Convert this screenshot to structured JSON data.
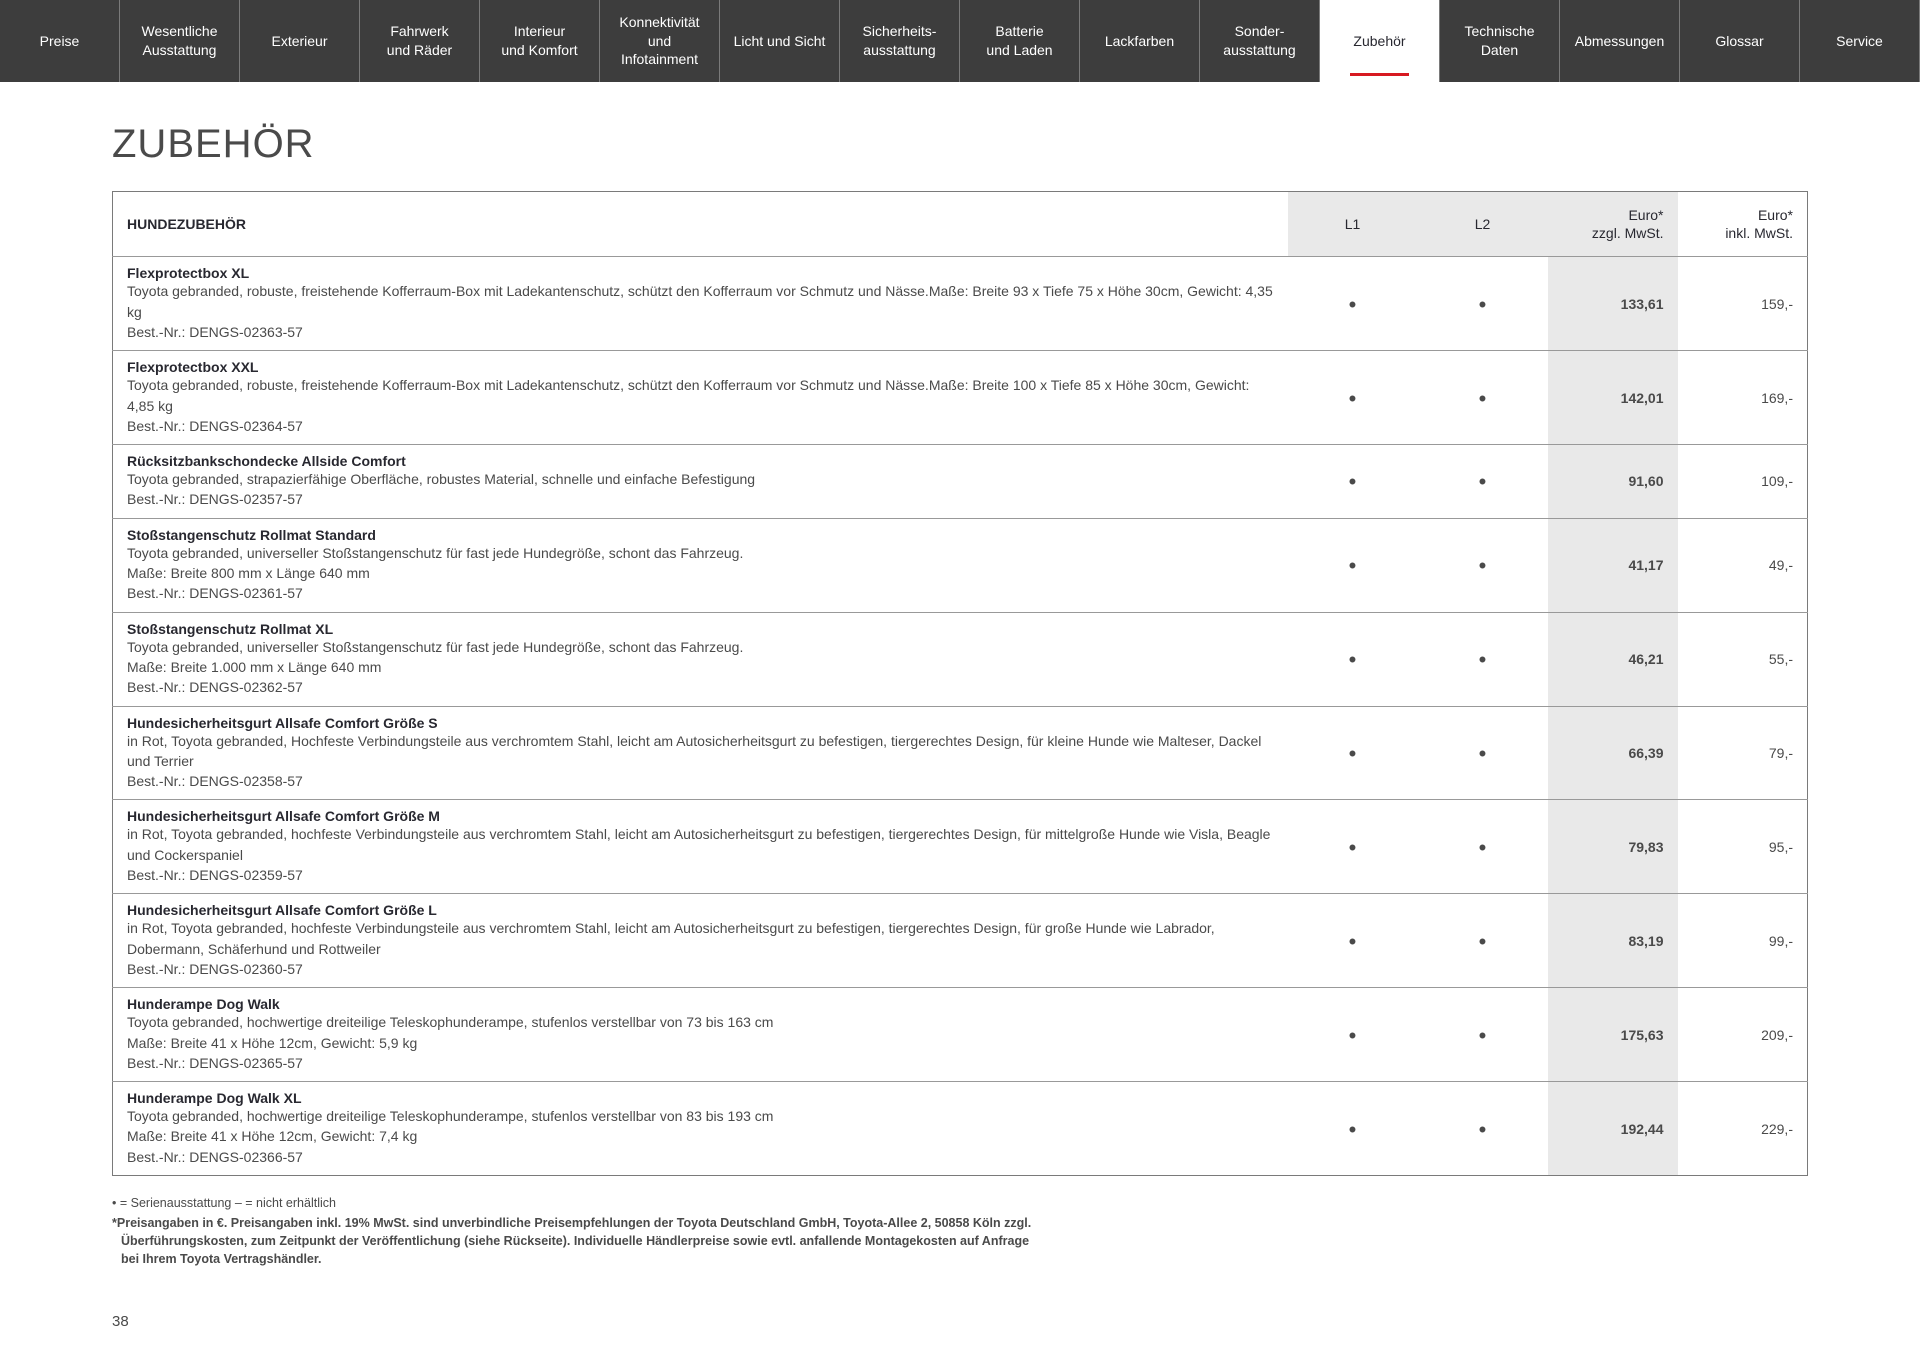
{
  "nav": {
    "items": [
      {
        "label": "Preise"
      },
      {
        "label": "Wesentliche Ausstattung"
      },
      {
        "label": "Exterieur"
      },
      {
        "label": "Fahrwerk und Räder"
      },
      {
        "label": "Interieur und Komfort"
      },
      {
        "label": "Konnektivität und Infotainment"
      },
      {
        "label": "Licht und Sicht"
      },
      {
        "label": "Sicherheits-ausstattung"
      },
      {
        "label": "Batterie und Laden"
      },
      {
        "label": "Lackfarben"
      },
      {
        "label": "Sonder-ausstattung"
      },
      {
        "label": "Zubehör",
        "active": true
      },
      {
        "label": "Technische Daten"
      },
      {
        "label": "Abmessungen"
      },
      {
        "label": "Glossar"
      },
      {
        "label": "Service"
      }
    ]
  },
  "pageTitle": "ZUBEHÖR",
  "table": {
    "header": {
      "category": "HUNDEZUBEHÖR",
      "l1": "L1",
      "l2": "L2",
      "net_line1": "Euro*",
      "net_line2": "zzgl. MwSt.",
      "gross_line1": "Euro*",
      "gross_line2": "inkl. MwSt."
    },
    "rows": [
      {
        "name": "Flexprotectbox XL",
        "desc": "Toyota gebranded, robuste, freistehende Kofferraum-Box mit Ladekantenschutz, schützt den Kofferraum vor Schmutz und Nässe.Maße: Breite 93 x Tiefe 75 x Höhe 30cm, Gewicht: 4,35 kg",
        "best": "Best.-Nr.: DENGS-02363-57",
        "l1": "•",
        "l2": "•",
        "net": "133,61",
        "gross": "159,-"
      },
      {
        "name": "Flexprotectbox XXL",
        "desc": "Toyota gebranded, robuste, freistehende Kofferraum-Box mit Ladekantenschutz, schützt den Kofferraum vor Schmutz und Nässe.Maße: Breite 100 x Tiefe 85 x Höhe 30cm, Gewicht: 4,85 kg",
        "best": "Best.-Nr.: DENGS-02364-57",
        "l1": "•",
        "l2": "•",
        "net": "142,01",
        "gross": "169,-"
      },
      {
        "name": "Rücksitzbankschondecke Allside Comfort",
        "desc": "Toyota gebranded, strapazierfähige Oberfläche, robustes Material, schnelle und einfache Befestigung",
        "best": "Best.-Nr.: DENGS-02357-57",
        "l1": "•",
        "l2": "•",
        "net": "91,60",
        "gross": "109,-"
      },
      {
        "name": "Stoßstangenschutz Rollmat Standard",
        "desc": "Toyota gebranded, universeller Stoßstangenschutz für fast jede Hundegröße, schont das Fahrzeug.\nMaße: Breite 800 mm x Länge 640 mm",
        "best": "Best.-Nr.: DENGS-02361-57",
        "l1": "•",
        "l2": "•",
        "net": "41,17",
        "gross": "49,-"
      },
      {
        "name": "Stoßstangenschutz Rollmat XL",
        "desc": "Toyota gebranded, universeller Stoßstangenschutz für fast jede Hundegröße, schont das Fahrzeug.\nMaße: Breite 1.000 mm x Länge 640 mm",
        "best": "Best.-Nr.: DENGS-02362-57",
        "l1": "•",
        "l2": "•",
        "net": "46,21",
        "gross": "55,-"
      },
      {
        "name": "Hundesicherheitsgurt Allsafe Comfort Größe S",
        "desc": "in Rot, Toyota gebranded, Hochfeste Verbindungsteile aus verchromtem Stahl, leicht am Autosicherheitsgurt zu befestigen, tiergerechtes Design, für kleine Hunde wie Malteser, Dackel und Terrier",
        "best": "Best.-Nr.: DENGS-02358-57",
        "l1": "•",
        "l2": "•",
        "net": "66,39",
        "gross": "79,-"
      },
      {
        "name": "Hundesicherheitsgurt Allsafe Comfort Größe M",
        "desc": "in Rot, Toyota gebranded, hochfeste Verbindungsteile aus verchromtem Stahl, leicht am Autosicherheitsgurt zu befestigen, tiergerechtes Design, für mittelgroße Hunde wie Visla, Beagle und Cockerspaniel",
        "best": "Best.-Nr.: DENGS-02359-57",
        "l1": "•",
        "l2": "•",
        "net": "79,83",
        "gross": "95,-"
      },
      {
        "name": "Hundesicherheitsgurt Allsafe Comfort Größe L",
        "desc": "in Rot, Toyota gebranded, hochfeste Verbindungsteile aus verchromtem Stahl, leicht am Autosicherheitsgurt zu befestigen, tiergerechtes Design, für große Hunde wie Labrador, Dobermann, Schäferhund und Rottweiler",
        "best": "Best.-Nr.: DENGS-02360-57",
        "l1": "•",
        "l2": "•",
        "net": "83,19",
        "gross": "99,-"
      },
      {
        "name": "Hunderampe Dog Walk",
        "desc": "Toyota gebranded, hochwertige dreiteilige Teleskophunderampe, stufenlos verstellbar von 73 bis 163 cm\nMaße: Breite 41 x Höhe 12cm, Gewicht: 5,9 kg",
        "best": "Best.-Nr.: DENGS-02365-57",
        "l1": "•",
        "l2": "•",
        "net": "175,63",
        "gross": "209,-"
      },
      {
        "name": "Hunderampe Dog Walk XL",
        "desc": "Toyota gebranded, hochwertige dreiteilige Teleskophunderampe, stufenlos verstellbar von 83 bis 193 cm\nMaße: Breite 41 x Höhe 12cm, Gewicht: 7,4 kg",
        "best": "Best.-Nr.: DENGS-02366-57",
        "l1": "•",
        "l2": "•",
        "net": "192,44",
        "gross": "229,-"
      }
    ]
  },
  "legend": {
    "line1": "• = Serienausstattung    – = nicht erhältlich",
    "disclaimer1": "*Preisangaben in €. Preisangaben inkl. 19% MwSt. sind unverbindliche Preisempfehlungen der Toyota Deutschland GmbH, Toyota-Allee 2, 50858 Köln zzgl.",
    "disclaimer2": "Überführungskosten, zum Zeitpunkt der Veröffentlichung (siehe Rückseite). Individuelle Händlerpreise sowie evtl. anfallende Montagekosten auf Anfrage",
    "disclaimer3": "bei Ihrem Toyota Vertragshändler."
  },
  "pageNumber": "38",
  "styles": {
    "nav_bg": "#3d3d3d",
    "nav_text": "#ffffff",
    "nav_active_bg": "#ffffff",
    "nav_active_underline": "#d71921",
    "header_cell_bg": "#e9e9e9",
    "border_color": "#7a7a7a",
    "text_primary": "#282830",
    "text_secondary": "#4a4a4a"
  }
}
